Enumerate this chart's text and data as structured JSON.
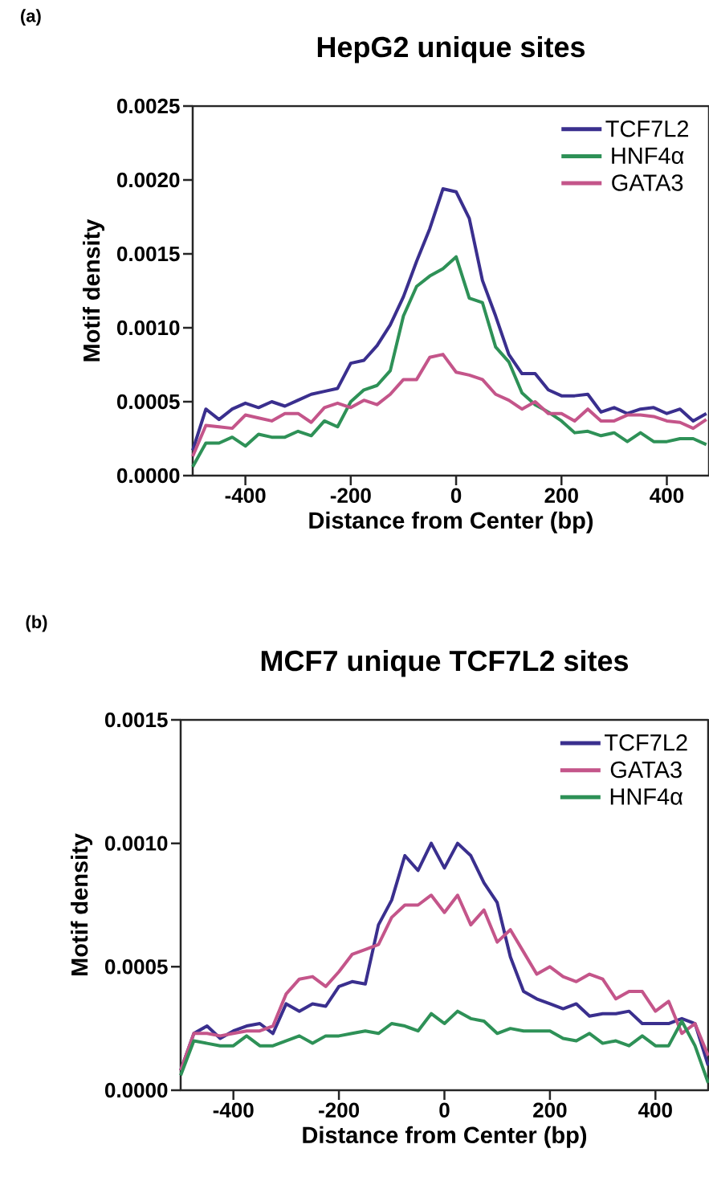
{
  "chart_data": [
    {
      "type": "line",
      "title": "HepG2 unique sites",
      "xlabel": "Distance from Center (bp)",
      "ylabel": "Motif density",
      "annotations": [
        "(a)"
      ],
      "legend": "top right",
      "xlim": [
        -500,
        480
      ],
      "ylim": [
        0,
        0.0025
      ],
      "xticks": [
        -400,
        -200,
        0,
        200,
        400
      ],
      "yticks": [
        {
          "value": 0,
          "label": "0.0000"
        },
        {
          "value": 0.0005,
          "label": "0.0005"
        },
        {
          "value": 0.001,
          "label": "0.0010"
        },
        {
          "value": 0.0015,
          "label": "0.0015"
        },
        {
          "value": 0.002,
          "label": "0.0020"
        },
        {
          "value": 0.0025,
          "label": "0.0025"
        }
      ],
      "x": [
        -500,
        -475,
        -450,
        -425,
        -400,
        -375,
        -350,
        -325,
        -300,
        -275,
        -250,
        -225,
        -200,
        -175,
        -150,
        -125,
        -100,
        -75,
        -50,
        -25,
        0,
        25,
        50,
        75,
        100,
        125,
        150,
        175,
        200,
        225,
        250,
        275,
        300,
        325,
        350,
        375,
        400,
        425,
        450,
        475
      ],
      "series": [
        {
          "name": "TCF7L2",
          "color": "#3a2f8e",
          "values": [
            0.00017,
            0.00045,
            0.00038,
            0.00045,
            0.00049,
            0.00046,
            0.0005,
            0.00047,
            0.00051,
            0.00055,
            0.00057,
            0.00059,
            0.00076,
            0.00078,
            0.00088,
            0.00102,
            0.00121,
            0.00145,
            0.00167,
            0.00194,
            0.00192,
            0.00174,
            0.00132,
            0.00108,
            0.00082,
            0.00069,
            0.00069,
            0.00058,
            0.00054,
            0.00054,
            0.00055,
            0.00043,
            0.00046,
            0.00042,
            0.00045,
            0.00046,
            0.00042,
            0.00045,
            0.00037,
            0.00042
          ]
        },
        {
          "name": "HNF4α",
          "color": "#2e9157",
          "values": [
            6e-05,
            0.00022,
            0.00022,
            0.00026,
            0.0002,
            0.00028,
            0.00026,
            0.00026,
            0.0003,
            0.00027,
            0.00037,
            0.00033,
            0.0005,
            0.00058,
            0.00061,
            0.00071,
            0.00108,
            0.00128,
            0.00135,
            0.0014,
            0.00148,
            0.0012,
            0.00117,
            0.00087,
            0.00077,
            0.00056,
            0.00048,
            0.00043,
            0.00037,
            0.00029,
            0.0003,
            0.00027,
            0.00029,
            0.00023,
            0.00029,
            0.00023,
            0.00023,
            0.00025,
            0.00025,
            0.00021
          ]
        },
        {
          "name": "GATA3",
          "color": "#c4558a",
          "values": [
            0.00013,
            0.00034,
            0.00033,
            0.00032,
            0.00041,
            0.00039,
            0.00037,
            0.00042,
            0.00042,
            0.00036,
            0.00046,
            0.00049,
            0.00046,
            0.00051,
            0.00048,
            0.00055,
            0.00065,
            0.00065,
            0.0008,
            0.00082,
            0.0007,
            0.00068,
            0.00065,
            0.00055,
            0.00051,
            0.00045,
            0.0005,
            0.00042,
            0.00042,
            0.00037,
            0.00045,
            0.00037,
            0.00037,
            0.00041,
            0.00041,
            0.0004,
            0.00037,
            0.00036,
            0.00032,
            0.00038
          ]
        }
      ]
    },
    {
      "type": "line",
      "title": "MCF7 unique TCF7L2 sites",
      "xlabel": "Distance from Center (bp)",
      "ylabel": "Motif density",
      "annotations": [
        "(b)"
      ],
      "legend": "top right",
      "xlim": [
        -500,
        500
      ],
      "ylim": [
        0,
        0.0015
      ],
      "xticks": [
        -400,
        -200,
        0,
        200,
        400
      ],
      "yticks": [
        {
          "value": 0,
          "label": "0.0000"
        },
        {
          "value": 0.0005,
          "label": "0.0005"
        },
        {
          "value": 0.001,
          "label": "0.0010"
        },
        {
          "value": 0.0015,
          "label": "0.0015"
        }
      ],
      "x": [
        -500,
        -475,
        -450,
        -425,
        -400,
        -375,
        -350,
        -325,
        -300,
        -275,
        -250,
        -225,
        -200,
        -175,
        -150,
        -125,
        -100,
        -75,
        -50,
        -25,
        0,
        25,
        50,
        75,
        100,
        125,
        150,
        175,
        200,
        225,
        250,
        275,
        300,
        325,
        350,
        375,
        400,
        425,
        450,
        475,
        500
      ],
      "series": [
        {
          "name": "TCF7L2",
          "color": "#3a2f8e",
          "values": [
            8e-05,
            0.00023,
            0.00026,
            0.00021,
            0.00024,
            0.00026,
            0.00027,
            0.00023,
            0.00035,
            0.00032,
            0.00035,
            0.00034,
            0.00042,
            0.00044,
            0.00043,
            0.00067,
            0.00077,
            0.00095,
            0.00089,
            0.001,
            0.0009,
            0.001,
            0.00095,
            0.00084,
            0.00076,
            0.00054,
            0.0004,
            0.00037,
            0.00035,
            0.00033,
            0.00035,
            0.0003,
            0.00031,
            0.00031,
            0.00032,
            0.00027,
            0.00027,
            0.00027,
            0.00029,
            0.00027,
            0.0001
          ]
        },
        {
          "name": "GATA3",
          "color": "#c4558a",
          "values": [
            8e-05,
            0.00023,
            0.00023,
            0.00022,
            0.00023,
            0.00024,
            0.00024,
            0.00026,
            0.00039,
            0.00045,
            0.00046,
            0.00042,
            0.00048,
            0.00055,
            0.00057,
            0.00059,
            0.0007,
            0.00075,
            0.00075,
            0.00079,
            0.00072,
            0.00079,
            0.00067,
            0.00073,
            0.0006,
            0.00065,
            0.00056,
            0.00047,
            0.0005,
            0.00046,
            0.00044,
            0.00047,
            0.00045,
            0.00037,
            0.0004,
            0.0004,
            0.00032,
            0.00036,
            0.00023,
            0.00027,
            0.00014
          ]
        },
        {
          "name": "HNF4α",
          "color": "#2e9157",
          "values": [
            6e-05,
            0.0002,
            0.00019,
            0.00018,
            0.00018,
            0.00022,
            0.00018,
            0.00018,
            0.0002,
            0.00022,
            0.00019,
            0.00022,
            0.00022,
            0.00023,
            0.00024,
            0.00023,
            0.00027,
            0.00026,
            0.00024,
            0.00031,
            0.00027,
            0.00032,
            0.00029,
            0.00028,
            0.00023,
            0.00025,
            0.00024,
            0.00024,
            0.00024,
            0.00021,
            0.0002,
            0.00023,
            0.00019,
            0.0002,
            0.00018,
            0.00022,
            0.00018,
            0.00018,
            0.00028,
            0.00018,
            3e-05
          ]
        }
      ]
    }
  ]
}
